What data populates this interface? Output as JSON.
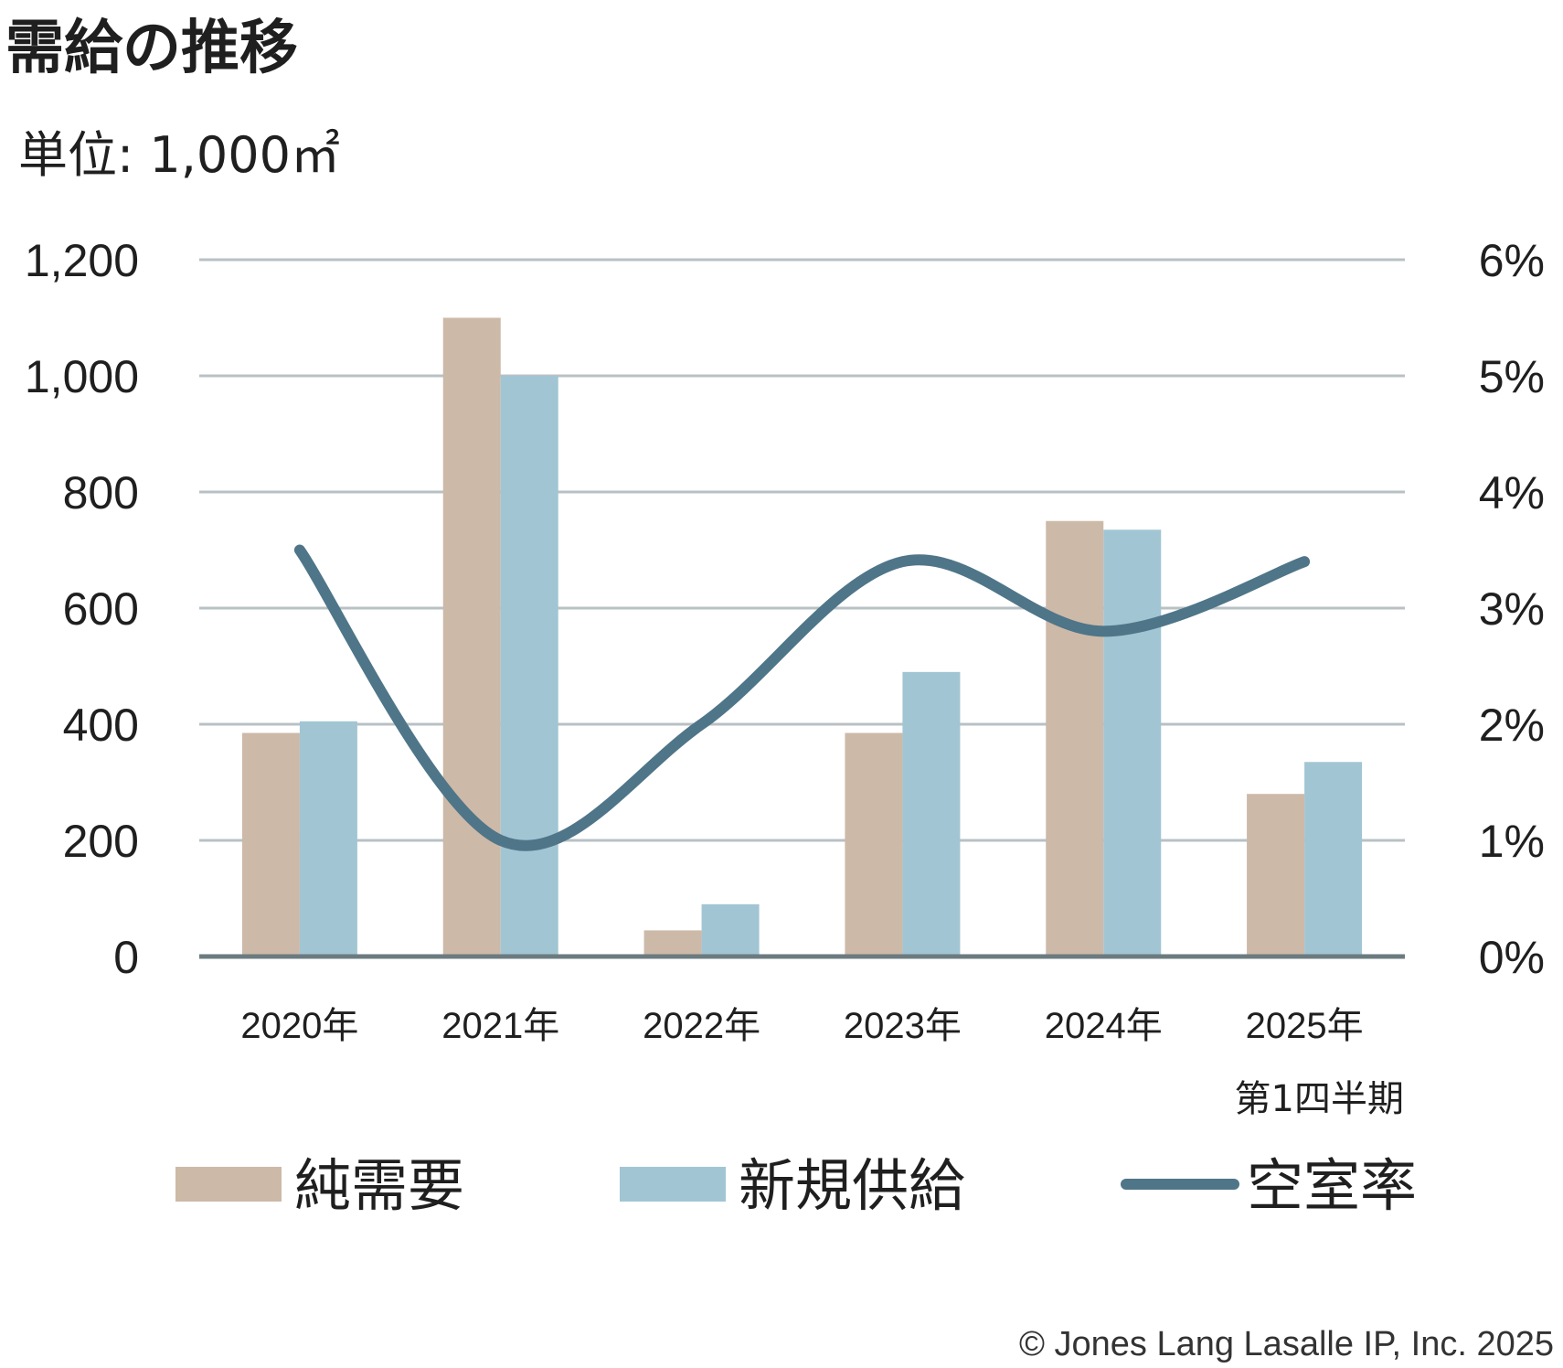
{
  "title": "需給の推移",
  "unit_label": "単位: 1,000㎡",
  "note": "第1四半期",
  "copyright": "© Jones Lang Lasalle IP, Inc. 2025",
  "colors": {
    "net_demand": "#cdb9a8",
    "new_supply": "#a2c5d3",
    "vacancy": "#4f7588"
  },
  "chart_data": {
    "type": "bar",
    "categories": [
      "2020年",
      "2021年",
      "2022年",
      "2023年",
      "2024年",
      "2025年"
    ],
    "series": [
      {
        "name": "純需要",
        "type": "bar",
        "axis": "left",
        "values": [
          385,
          1100,
          45,
          385,
          750,
          280
        ]
      },
      {
        "name": "新規供給",
        "type": "bar",
        "axis": "left",
        "values": [
          405,
          1000,
          90,
          490,
          735,
          335
        ]
      },
      {
        "name": "空室率",
        "type": "line",
        "axis": "right",
        "values": [
          3.5,
          1.0,
          2.0,
          3.4,
          2.8,
          3.4
        ]
      }
    ],
    "y_left": {
      "ylim": [
        0,
        1200
      ],
      "ticks": [
        "0",
        "200",
        "400",
        "600",
        "800",
        "1,000",
        "1,200"
      ]
    },
    "y_right": {
      "ylim": [
        0,
        6
      ],
      "ticks": [
        "0%",
        "1%",
        "2%",
        "3%",
        "4%",
        "5%",
        "6%"
      ]
    },
    "grid": true,
    "legend_position": "bottom"
  }
}
